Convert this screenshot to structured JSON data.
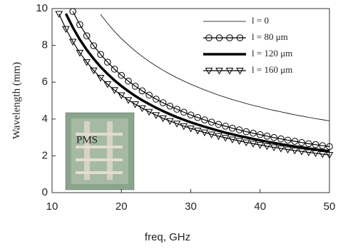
{
  "chart_data": {
    "type": "line",
    "xlabel": "freq, GHz",
    "ylabel": "Wavelength (mm)",
    "x": [
      11,
      12,
      13,
      14,
      15,
      16,
      17,
      18,
      19,
      20,
      21,
      22,
      23,
      24,
      25,
      26,
      27,
      28,
      29,
      30,
      31,
      32,
      33,
      34,
      35,
      36,
      37,
      38,
      39,
      40,
      41,
      42,
      43,
      44,
      45,
      46,
      47,
      48,
      49,
      50
    ],
    "series": [
      {
        "name": "l = 0",
        "color": "#000000",
        "line_width": 0.8,
        "marker": "none",
        "values": [
          null,
          null,
          null,
          null,
          null,
          null,
          9.68,
          9.2,
          8.76,
          8.37,
          8.02,
          7.69,
          7.4,
          7.13,
          6.88,
          6.65,
          6.44,
          6.24,
          6.06,
          5.89,
          5.73,
          5.58,
          5.44,
          5.3,
          5.18,
          5.06,
          4.95,
          4.84,
          4.74,
          4.65,
          4.55,
          4.47,
          4.39,
          4.31,
          4.23,
          4.16,
          4.09,
          4.02,
          3.96,
          3.9
        ]
      },
      {
        "name": "l = 80 μm",
        "color": "#000000",
        "line_width": 1.2,
        "marker": "circle",
        "values": [
          null,
          null,
          9.84,
          9.13,
          8.52,
          7.98,
          7.51,
          7.09,
          6.71,
          6.37,
          6.06,
          5.78,
          5.53,
          5.3,
          5.08,
          4.88,
          4.7,
          4.53,
          4.37,
          4.22,
          4.08,
          3.95,
          3.83,
          3.71,
          3.61,
          3.5,
          3.41,
          3.31,
          3.23,
          3.15,
          3.07,
          2.99,
          2.92,
          2.85,
          2.79,
          2.72,
          2.66,
          2.61,
          2.55,
          2.5
        ]
      },
      {
        "name": "l = 120 μm",
        "color": "#000000",
        "line_width": 3.5,
        "marker": "none",
        "values": [
          null,
          9.72,
          8.97,
          8.32,
          7.76,
          7.27,
          6.83,
          6.45,
          6.1,
          5.79,
          5.51,
          5.25,
          5.02,
          4.81,
          4.61,
          4.43,
          4.26,
          4.1,
          3.96,
          3.82,
          3.7,
          3.58,
          3.47,
          3.36,
          3.26,
          3.17,
          3.08,
          3.0,
          2.92,
          2.84,
          2.77,
          2.7,
          2.63,
          2.57,
          2.51,
          2.46,
          2.4,
          2.35,
          2.3,
          2.25
        ]
      },
      {
        "name": "l = 160 μm",
        "color": "#000000",
        "line_width": 1.2,
        "marker": "triangle-down",
        "values": [
          9.71,
          8.89,
          8.2,
          7.6,
          7.09,
          6.64,
          6.24,
          5.89,
          5.57,
          5.29,
          5.03,
          4.8,
          4.59,
          4.39,
          4.21,
          4.04,
          3.89,
          3.75,
          3.61,
          3.49,
          3.37,
          3.27,
          3.16,
          3.07,
          2.98,
          2.89,
          2.81,
          2.73,
          2.66,
          2.59,
          2.52,
          2.46,
          2.4,
          2.34,
          2.29,
          2.24,
          2.19,
          2.14,
          2.09,
          2.05
        ]
      }
    ],
    "xlim": [
      10,
      50
    ],
    "xticks": [
      10,
      20,
      30,
      40,
      50
    ],
    "ylim": [
      0,
      10
    ],
    "yticks": [
      0,
      2,
      4,
      6,
      8,
      10
    ],
    "legend": "upper right",
    "grid": false,
    "annotations": [
      "PMS"
    ]
  }
}
